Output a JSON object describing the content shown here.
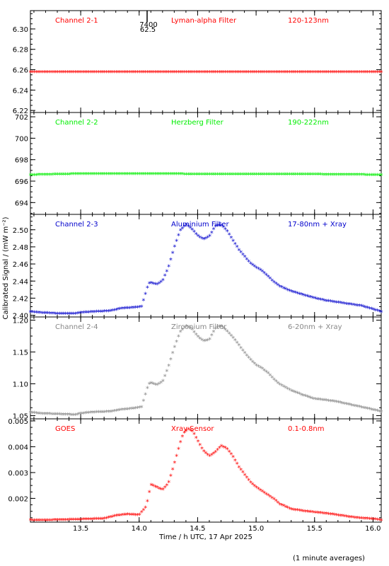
{
  "figure": {
    "ylabel": "Calibrated Signal / (mW m⁻²)",
    "xlabel": "Time / h UTC, 17 Apr 2025",
    "footnote": "(1 minute averages)",
    "marker_label_top": "7400",
    "marker_label_bottom": "62.5"
  },
  "chart_data": [
    {
      "type": "scatter",
      "channel": "Channel 2-1",
      "filter": "Lyman-alpha Filter",
      "band": "120-123nm",
      "color": "#ff0000",
      "xlim": [
        13.07,
        16.07
      ],
      "ylim": [
        6.218,
        6.318
      ],
      "yticks": [
        6.22,
        6.24,
        6.26,
        6.28,
        6.3
      ],
      "ytick_labels": [
        "6.22",
        "6.24",
        "6.26",
        "6.28",
        "6.30"
      ],
      "x": [
        13.07,
        16.07
      ],
      "y": [
        6.257,
        6.257
      ]
    },
    {
      "type": "scatter",
      "channel": "Channel 2-2",
      "filter": "Herzberg Filter",
      "band": "190-222nm",
      "color": "#00ee00",
      "xlim": [
        13.07,
        16.07
      ],
      "ylim": [
        692.9,
        702.4
      ],
      "yticks": [
        694,
        696,
        698,
        700,
        702
      ],
      "ytick_labels": [
        "694",
        "696",
        "698",
        "700",
        "702"
      ],
      "x": [
        13.07,
        13.5,
        15.5,
        16.07
      ],
      "y": [
        696.5,
        696.6,
        696.55,
        696.5
      ]
    },
    {
      "type": "scatter",
      "channel": "Channel 2-3",
      "filter": "Aluminium Filter",
      "band": "17-80nm + Xray",
      "color": "#0000cc",
      "xlim": [
        13.07,
        16.07
      ],
      "ylim": [
        2.398,
        2.518
      ],
      "yticks": [
        2.4,
        2.42,
        2.44,
        2.46,
        2.48,
        2.5
      ],
      "ytick_labels": [
        "2.40",
        "2.42",
        "2.44",
        "2.46",
        "2.48",
        "2.50"
      ],
      "x": [
        13.07,
        13.15,
        13.3,
        13.45,
        13.5,
        13.6,
        13.75,
        13.85,
        13.95,
        14.02,
        14.08,
        14.1,
        14.15,
        14.2,
        14.25,
        14.3,
        14.35,
        14.4,
        14.45,
        14.5,
        14.55,
        14.6,
        14.65,
        14.7,
        14.75,
        14.8,
        14.85,
        14.9,
        14.95,
        15.0,
        15.05,
        15.1,
        15.15,
        15.2,
        15.3,
        15.4,
        15.5,
        15.6,
        15.7,
        15.8,
        15.9,
        16.0,
        16.07
      ],
      "y": [
        2.403,
        2.402,
        2.401,
        2.401,
        2.402,
        2.403,
        2.404,
        2.407,
        2.408,
        2.409,
        2.436,
        2.437,
        2.435,
        2.439,
        2.455,
        2.478,
        2.498,
        2.505,
        2.5,
        2.492,
        2.488,
        2.491,
        2.503,
        2.505,
        2.498,
        2.487,
        2.476,
        2.468,
        2.46,
        2.455,
        2.451,
        2.445,
        2.438,
        2.433,
        2.427,
        2.423,
        2.419,
        2.416,
        2.414,
        2.412,
        2.41,
        2.406,
        2.403
      ]
    },
    {
      "type": "scatter",
      "channel": "Channel 2-4",
      "filter": "Zirconium Filter",
      "band": "6-20nm + Xray",
      "color": "#888888",
      "xlim": [
        13.07,
        16.07
      ],
      "ylim": [
        1.045,
        1.205
      ],
      "yticks": [
        1.05,
        1.1,
        1.15,
        1.2
      ],
      "ytick_labels": [
        "1.05",
        "1.10",
        "1.15",
        "1.20"
      ],
      "x": [
        13.07,
        13.15,
        13.3,
        13.45,
        13.5,
        13.6,
        13.75,
        13.85,
        13.95,
        14.02,
        14.08,
        14.1,
        14.15,
        14.2,
        14.25,
        14.3,
        14.35,
        14.4,
        14.45,
        14.5,
        14.55,
        14.6,
        14.65,
        14.7,
        14.75,
        14.8,
        14.85,
        14.9,
        14.95,
        15.0,
        15.05,
        15.1,
        15.15,
        15.2,
        15.3,
        15.4,
        15.5,
        15.6,
        15.7,
        15.8,
        15.9,
        16.0,
        16.07
      ],
      "y": [
        1.054,
        1.052,
        1.051,
        1.05,
        1.052,
        1.054,
        1.055,
        1.058,
        1.06,
        1.062,
        1.098,
        1.1,
        1.097,
        1.102,
        1.125,
        1.155,
        1.18,
        1.19,
        1.185,
        1.173,
        1.166,
        1.168,
        1.185,
        1.19,
        1.182,
        1.172,
        1.16,
        1.148,
        1.137,
        1.128,
        1.123,
        1.116,
        1.106,
        1.098,
        1.088,
        1.081,
        1.075,
        1.073,
        1.07,
        1.066,
        1.062,
        1.058,
        1.055
      ]
    },
    {
      "type": "scatter",
      "channel": "GOES",
      "filter": "Xray Sensor",
      "band": "0.1-0.8nm",
      "color": "#ff0000",
      "xlim": [
        13.07,
        16.07
      ],
      "ylim": [
        0.00108,
        0.00508
      ],
      "yticks": [
        0.002,
        0.003,
        0.004,
        0.005
      ],
      "ytick_labels": [
        "0.002",
        "0.003",
        "0.004",
        "0.005"
      ],
      "x": [
        13.07,
        13.15,
        13.3,
        13.45,
        13.55,
        13.7,
        13.8,
        13.9,
        14.0,
        14.06,
        14.1,
        14.15,
        14.2,
        14.25,
        14.3,
        14.35,
        14.38,
        14.42,
        14.46,
        14.5,
        14.55,
        14.6,
        14.65,
        14.7,
        14.75,
        14.8,
        14.85,
        14.9,
        14.95,
        15.0,
        15.05,
        15.1,
        15.15,
        15.2,
        15.3,
        15.4,
        15.5,
        15.6,
        15.7,
        15.8,
        15.9,
        16.0,
        16.07
      ],
      "y": [
        0.00113,
        0.00112,
        0.00113,
        0.00115,
        0.00116,
        0.00118,
        0.0013,
        0.00135,
        0.00132,
        0.00165,
        0.0025,
        0.0024,
        0.0023,
        0.00255,
        0.0033,
        0.0041,
        0.0045,
        0.00465,
        0.00455,
        0.0042,
        0.0038,
        0.0036,
        0.00375,
        0.004,
        0.0039,
        0.0036,
        0.0032,
        0.0029,
        0.0026,
        0.0024,
        0.00225,
        0.0021,
        0.00195,
        0.00175,
        0.00155,
        0.00148,
        0.00143,
        0.00138,
        0.00132,
        0.00125,
        0.0012,
        0.00117,
        0.00112
      ]
    }
  ],
  "xaxis": {
    "ticks": [
      13.5,
      14.0,
      14.5,
      15.0,
      15.5,
      16.0
    ],
    "tick_labels": [
      "13.5",
      "14.0",
      "14.5",
      "15.0",
      "15.5",
      "16.0"
    ],
    "minor_step": 0.1
  }
}
